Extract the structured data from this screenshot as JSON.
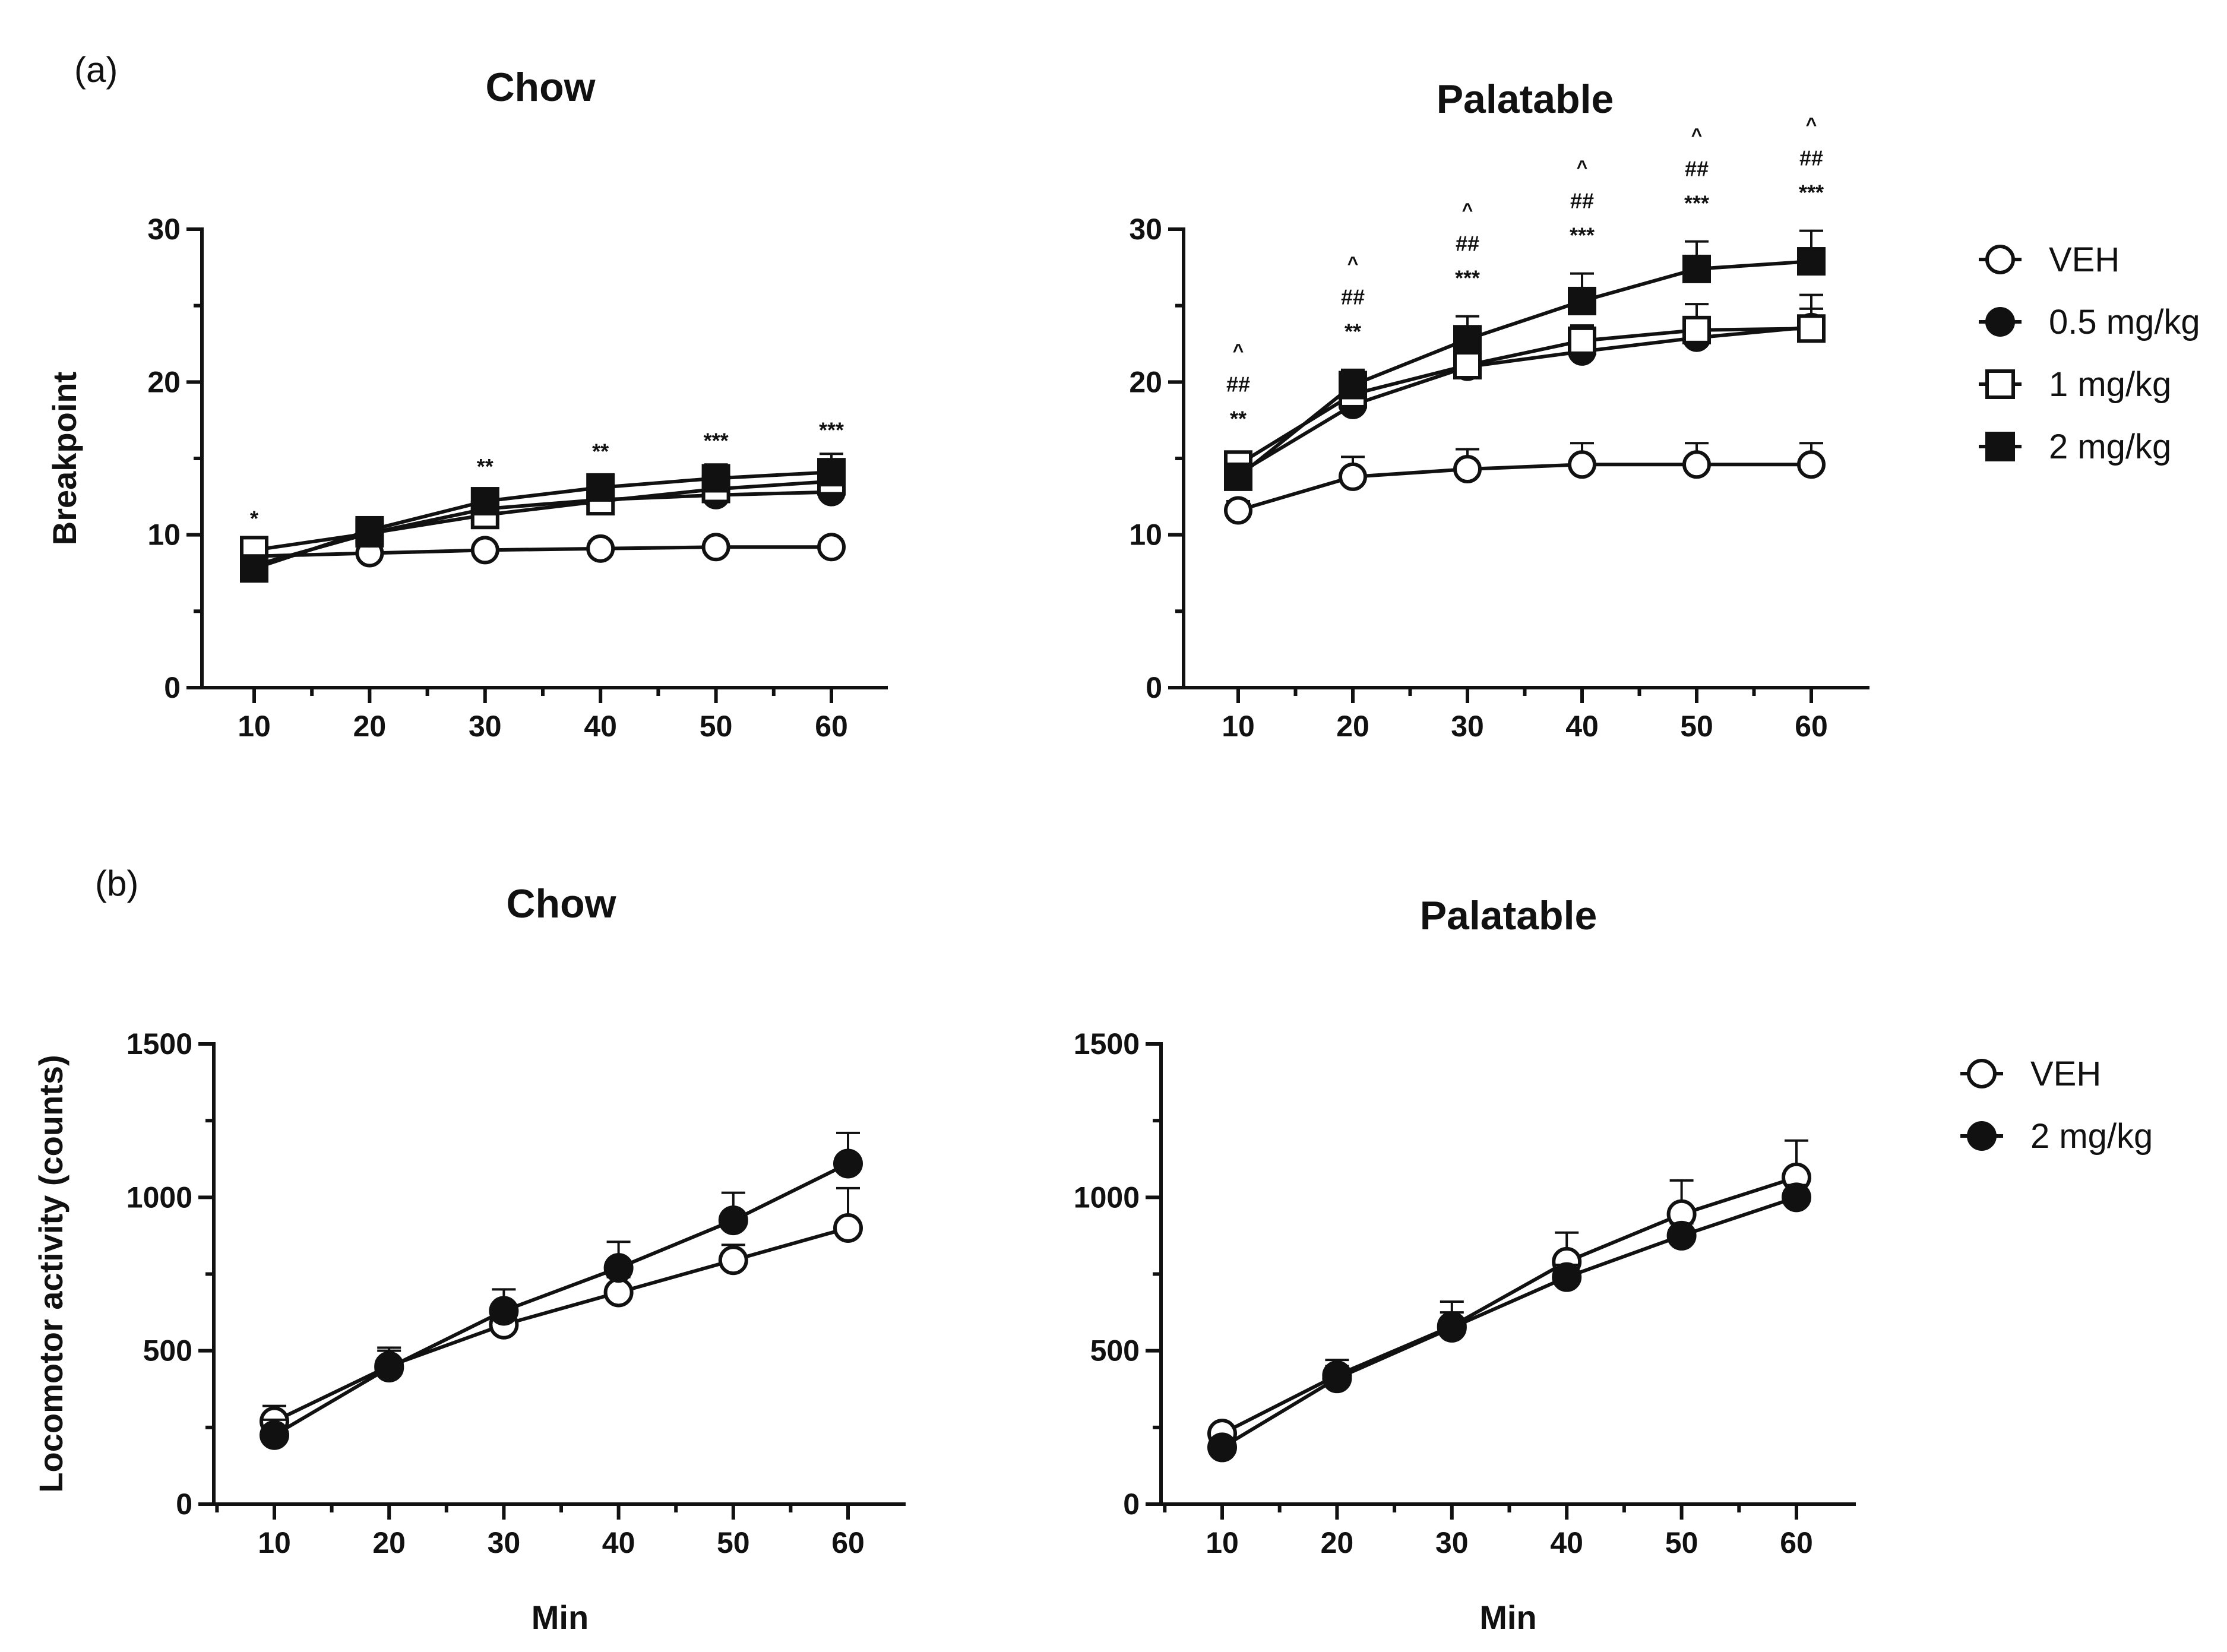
{
  "panels": {
    "a": "(a)",
    "b": "(b)"
  },
  "legend_a": [
    {
      "label": "VEH",
      "marker": "circle-open"
    },
    {
      "label": "0.5 mg/kg",
      "marker": "circle-filled"
    },
    {
      "label": "1 mg/kg",
      "marker": "square-open"
    },
    {
      "label": "2 mg/kg",
      "marker": "square-filled"
    }
  ],
  "legend_b": [
    {
      "label": "VEH",
      "marker": "circle-open"
    },
    {
      "label": "2 mg/kg",
      "marker": "circle-filled"
    }
  ],
  "colors": {
    "line": "#111111",
    "open_fill": "#ffffff",
    "filled": "#111111"
  },
  "chart_data": [
    {
      "id": "a-chow",
      "type": "line",
      "title": "Chow",
      "ylabel": "Breakpoint",
      "xlabel": "",
      "x": [
        10,
        20,
        30,
        40,
        50,
        60
      ],
      "xticks": [
        "10",
        "20",
        "30",
        "40",
        "50",
        "60"
      ],
      "ylim": [
        0,
        30
      ],
      "yticks": [
        0,
        10,
        20,
        30
      ],
      "series": [
        {
          "name": "VEH",
          "marker": "circle-open",
          "values": [
            8.6,
            8.8,
            9.0,
            9.1,
            9.2,
            9.2
          ],
          "err": [
            0.4,
            0.4,
            0.4,
            0.5,
            0.5,
            0.5
          ]
        },
        {
          "name": "0.5 mg/kg",
          "marker": "circle-filled",
          "values": [
            8.0,
            10.1,
            11.7,
            12.3,
            12.6,
            12.8
          ],
          "err": [
            0.5,
            0.6,
            0.6,
            0.6,
            0.6,
            0.6
          ]
        },
        {
          "name": "1 mg/kg",
          "marker": "square-open",
          "values": [
            9.0,
            10.1,
            11.3,
            12.2,
            13.0,
            13.5
          ],
          "err": [
            0.5,
            0.6,
            0.6,
            0.6,
            0.6,
            0.6
          ]
        },
        {
          "name": "2 mg/kg",
          "marker": "square-filled",
          "values": [
            7.8,
            10.3,
            12.2,
            13.1,
            13.7,
            14.1
          ],
          "err": [
            0.5,
            0.7,
            0.7,
            0.8,
            0.9,
            1.2
          ]
        }
      ],
      "annotations": [
        {
          "x": 10,
          "lines": [
            "*"
          ]
        },
        {
          "x": 30,
          "lines": [
            "**"
          ]
        },
        {
          "x": 40,
          "lines": [
            "**"
          ]
        },
        {
          "x": 50,
          "lines": [
            "***"
          ]
        },
        {
          "x": 60,
          "lines": [
            "***"
          ]
        }
      ]
    },
    {
      "id": "a-palatable",
      "type": "line",
      "title": "Palatable",
      "ylabel": "",
      "xlabel": "",
      "x": [
        10,
        20,
        30,
        40,
        50,
        60
      ],
      "xticks": [
        "10",
        "20",
        "30",
        "40",
        "50",
        "60"
      ],
      "ylim": [
        0,
        30
      ],
      "yticks": [
        0,
        10,
        20,
        30
      ],
      "series": [
        {
          "name": "VEH",
          "marker": "circle-open",
          "values": [
            11.6,
            13.8,
            14.3,
            14.6,
            14.6,
            14.6
          ],
          "err": [
            0.6,
            1.3,
            1.3,
            1.4,
            1.4,
            1.4
          ]
        },
        {
          "name": "0.5 mg/kg",
          "marker": "circle-filled",
          "values": [
            14.0,
            18.5,
            21.0,
            22.0,
            22.9,
            23.6
          ],
          "err": [
            0.5,
            0.8,
            0.8,
            0.9,
            1.0,
            1.2
          ]
        },
        {
          "name": "1 mg/kg",
          "marker": "square-open",
          "values": [
            14.6,
            19.2,
            21.1,
            22.7,
            23.4,
            23.5
          ],
          "err": [
            0.5,
            0.8,
            0.9,
            1.0,
            1.7,
            2.2
          ]
        },
        {
          "name": "2 mg/kg",
          "marker": "square-filled",
          "values": [
            13.8,
            19.8,
            22.8,
            25.3,
            27.4,
            27.9
          ],
          "err": [
            0.6,
            1.0,
            1.5,
            1.8,
            1.8,
            2.0
          ]
        }
      ],
      "annotations": [
        {
          "x": 10,
          "lines": [
            "^",
            "##",
            "**"
          ]
        },
        {
          "x": 20,
          "lines": [
            "^",
            "##",
            "**"
          ]
        },
        {
          "x": 30,
          "lines": [
            "^",
            "##",
            "***"
          ]
        },
        {
          "x": 40,
          "lines": [
            "^",
            "##",
            "***"
          ]
        },
        {
          "x": 50,
          "lines": [
            "^",
            "##",
            "***"
          ]
        },
        {
          "x": 60,
          "lines": [
            "^",
            "##",
            "***"
          ]
        }
      ]
    },
    {
      "id": "b-chow",
      "type": "line",
      "title": "Chow",
      "ylabel": "Locomotor activity (counts)",
      "xlabel": "Min",
      "x": [
        10,
        20,
        30,
        40,
        50,
        60
      ],
      "xticks": [
        "10",
        "20",
        "30",
        "40",
        "50",
        "60"
      ],
      "ylim": [
        0,
        1500
      ],
      "yticks": [
        0,
        500,
        1000,
        1500
      ],
      "series": [
        {
          "name": "VEH",
          "marker": "circle-open",
          "values": [
            270,
            450,
            585,
            690,
            795,
            900
          ],
          "err": [
            50,
            50,
            50,
            50,
            50,
            130
          ]
        },
        {
          "name": "2 mg/kg",
          "marker": "circle-filled",
          "values": [
            225,
            445,
            630,
            770,
            925,
            1110
          ],
          "err": [
            50,
            65,
            70,
            85,
            90,
            100
          ]
        }
      ],
      "annotations": []
    },
    {
      "id": "b-palatable",
      "type": "line",
      "title": "Palatable",
      "ylabel": "",
      "xlabel": "Min",
      "x": [
        10,
        20,
        30,
        40,
        50,
        60
      ],
      "xticks": [
        "10",
        "20",
        "30",
        "40",
        "50",
        "60"
      ],
      "ylim": [
        0,
        1500
      ],
      "yticks": [
        0,
        500,
        1000,
        1500
      ],
      "series": [
        {
          "name": "VEH",
          "marker": "circle-open",
          "values": [
            230,
            420,
            580,
            790,
            945,
            1065
          ],
          "err": [
            25,
            50,
            80,
            95,
            110,
            120
          ]
        },
        {
          "name": "2 mg/kg",
          "marker": "circle-filled",
          "values": [
            185,
            410,
            575,
            740,
            875,
            1000
          ],
          "err": [
            25,
            40,
            50,
            40,
            40,
            40
          ]
        }
      ],
      "annotations": []
    }
  ]
}
